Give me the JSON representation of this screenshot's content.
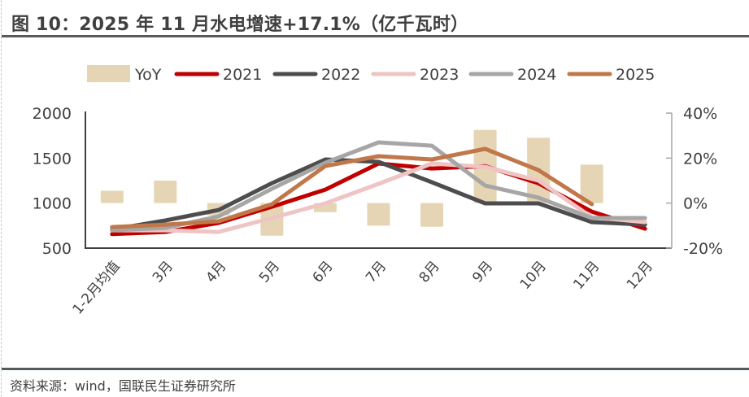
{
  "title": "图 10：2025 年 11 月水电增速+17.1%（亿千瓦时）",
  "source": "资料来源：wind，国联民生证券研究所",
  "chart_data": {
    "type": "bar+line",
    "title": "图 10：2025 年 11 月水电增速+17.1%（亿千瓦时）",
    "categories": [
      "1-2月均值",
      "3月",
      "4月",
      "5月",
      "6月",
      "7月",
      "8月",
      "9月",
      "10月",
      "11月",
      "12月"
    ],
    "left_axis": {
      "ylim": [
        500,
        2000
      ],
      "ticks": [
        "2000",
        "1500",
        "1000",
        "500"
      ],
      "tick_values": [
        2000,
        1500,
        1000,
        500
      ]
    },
    "right_axis": {
      "ylim": [
        -0.2,
        0.4
      ],
      "ticks": [
        "40%",
        "20%",
        "0%",
        "-20%"
      ],
      "tick_values": [
        0.4,
        0.2,
        0.0,
        -0.2
      ]
    },
    "legend_position": "top",
    "grid": false,
    "bars": {
      "name": "YoY",
      "axis": "right",
      "color": "#e6d5b4",
      "values": [
        0.055,
        0.1,
        -0.055,
        -0.145,
        -0.04,
        -0.1,
        -0.105,
        0.325,
        0.29,
        0.171,
        null
      ]
    },
    "series": [
      {
        "name": "2021",
        "color": "#c00000",
        "values": [
          655,
          680,
          780,
          960,
          1150,
          1440,
          1385,
          1410,
          1220,
          906,
          716
        ]
      },
      {
        "name": "2022",
        "color": "#4d4d4f",
        "values": [
          707,
          807,
          924,
          1222,
          1485,
          1458,
          1232,
          997,
          997,
          789,
          761
        ]
      },
      {
        "name": "2023",
        "color": "#efc4c4",
        "values": [
          698,
          698,
          680,
          834,
          997,
          1214,
          1440,
          1403,
          1250,
          843,
          789
        ]
      },
      {
        "name": "2024",
        "color": "#a6a6a6",
        "values": [
          698,
          725,
          852,
          1160,
          1448,
          1675,
          1638,
          1195,
          1060,
          834,
          834
        ]
      },
      {
        "name": "2025",
        "color": "#c0784a",
        "values": [
          734,
          761,
          798,
          988,
          1412,
          1521,
          1485,
          1602,
          1367,
          988,
          null
        ]
      }
    ],
    "xlabel": "",
    "ylabel": ""
  }
}
